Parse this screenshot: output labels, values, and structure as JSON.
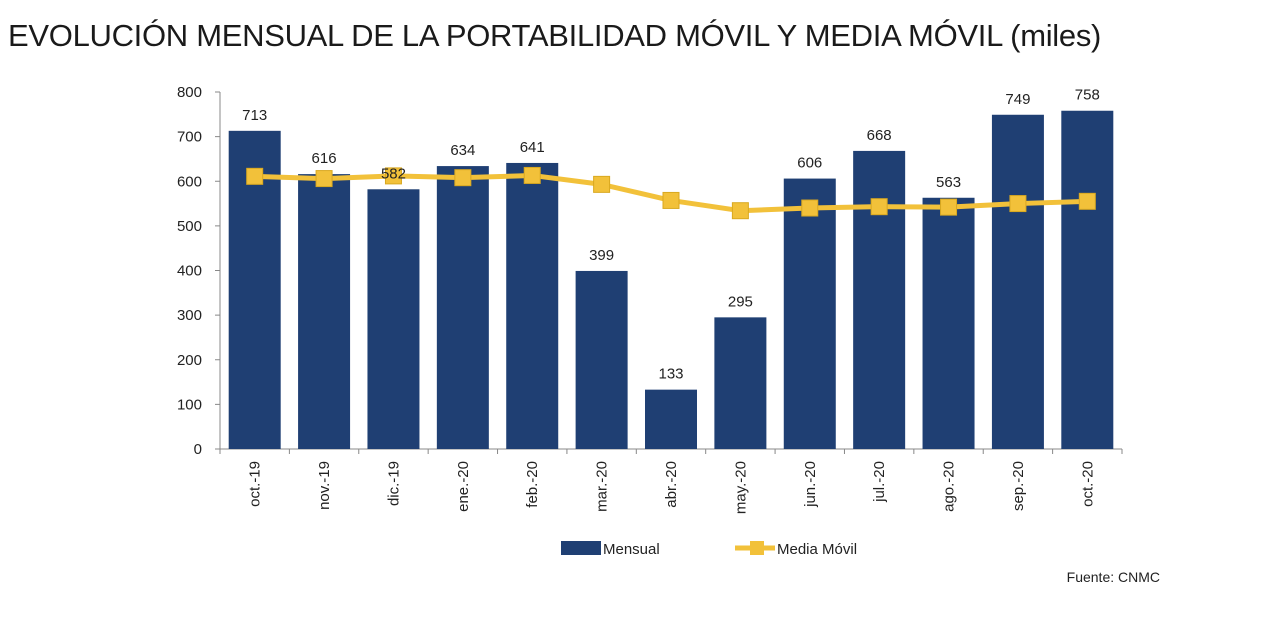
{
  "title": "EVOLUCIÓN MENSUAL DE LA PORTABILIDAD MÓVIL Y MEDIA MÓVIL (miles)",
  "source": "Fuente: CNMC",
  "colors": {
    "bar": "#1f3f73",
    "line": "#f2c13a",
    "marker": "#f2c13a"
  },
  "chart_data": {
    "type": "bar",
    "categories": [
      "oct.-19",
      "nov.-19",
      "dic.-19",
      "ene.-20",
      "feb.-20",
      "mar.-20",
      "abr.-20",
      "may.-20",
      "jun.-20",
      "jul.-20",
      "ago.-20",
      "sep.-20",
      "oct.-20"
    ],
    "series": [
      {
        "name": "Mensual",
        "type": "bar",
        "values": [
          713,
          616,
          582,
          634,
          641,
          399,
          133,
          295,
          606,
          668,
          563,
          749,
          758
        ]
      },
      {
        "name": "Media Móvil",
        "type": "line",
        "values": [
          611,
          606,
          612,
          608,
          613,
          593,
          557,
          534,
          540,
          543,
          542,
          550,
          555
        ]
      }
    ],
    "yticks": [
      "0",
      "100",
      "200",
      "300",
      "400",
      "500",
      "600",
      "700",
      "800"
    ],
    "ylim": [
      0,
      800
    ],
    "grid": false,
    "legend_position": "bottom"
  }
}
